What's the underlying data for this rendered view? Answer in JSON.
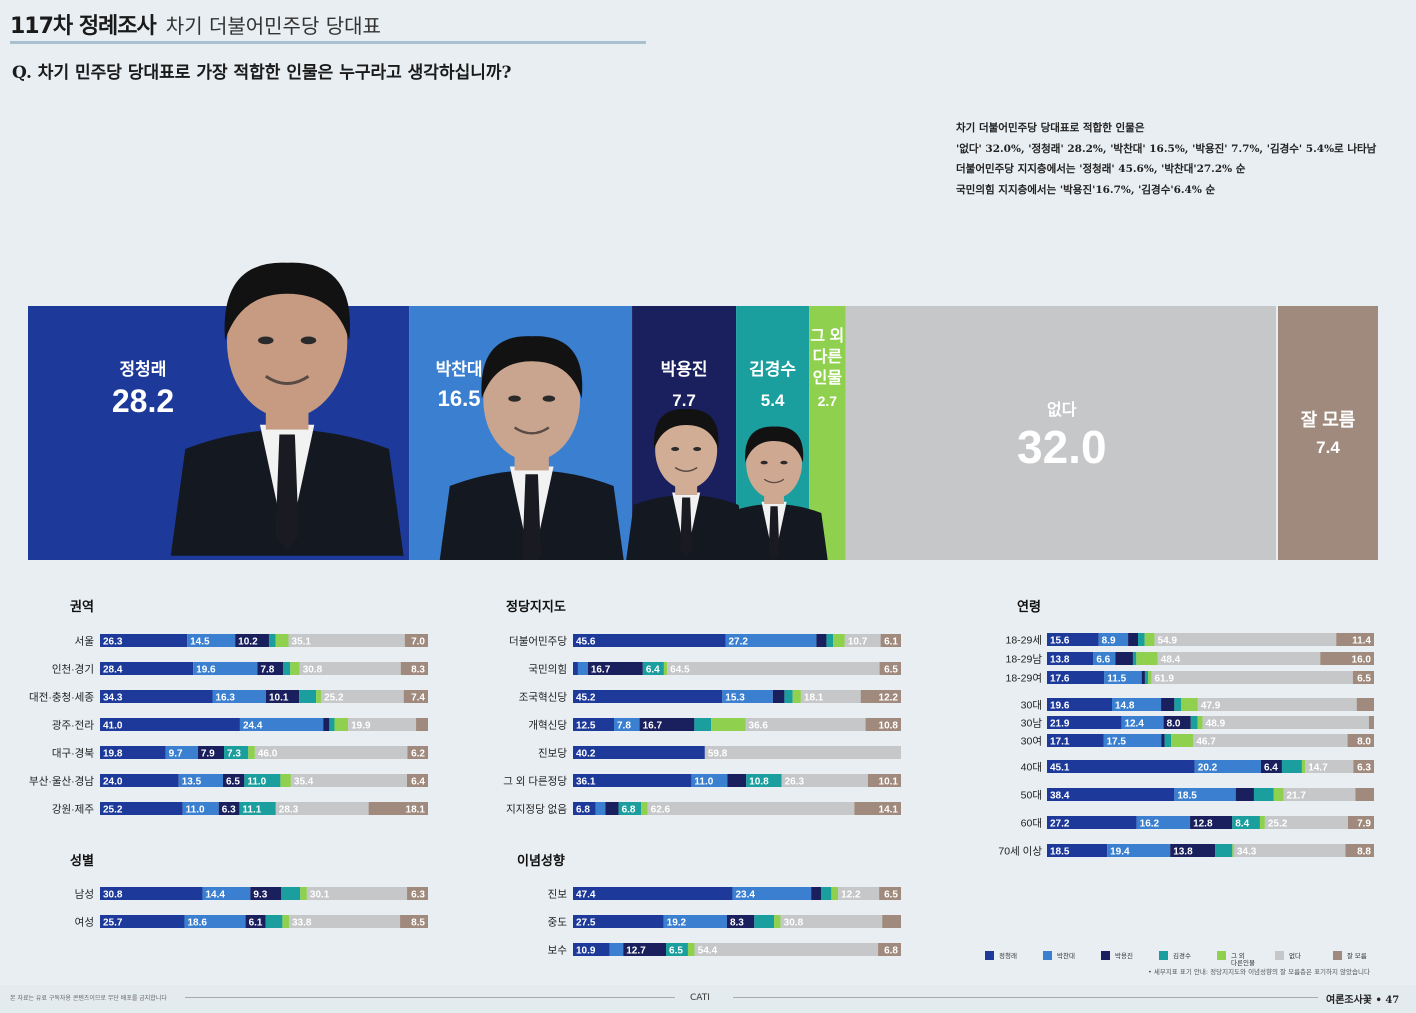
{
  "header": {
    "survey_no": "117차 정례조사",
    "topic": "차기 더불어민주당 당대표"
  },
  "question": "Q. 차기 민주당 당대표로 가장 적합한 인물은 누구라고 생각하십니까?",
  "summary": [
    "차기 더불어민주당 당대표로 적합한 인물은",
    "'없다' 32.0%, '정청래' 28.2%, '박찬대' 16.5%, '박용진' 7.7%, '김경수' 5.4%로 나타남",
    "더불어민주당 지지층에서는 '정청래' 45.6%, '박찬대'27.2% 순",
    "국민의힘 지지층에서는 '박용진'16.7%, '김경수'6.4% 순"
  ],
  "colors": {
    "jung": "#1d3a9a",
    "park_c": "#3a7fd0",
    "park_y": "#1a1f5e",
    "kim": "#1a9e9e",
    "other": "#8fd14f",
    "none": "#c6c7c9",
    "unknown": "#a08a7d",
    "bg": "#e8eef2"
  },
  "legend": [
    "정청래",
    "박찬대",
    "박용진",
    "김경수",
    "그 외\n다른인물",
    "없다",
    "잘 모름"
  ],
  "legend_note": "• 세부지표 표기 안내: 정당지지도와 이념성향의 잘 모름층은 표기하지 않았습니다",
  "chart_data": [
    {
      "type": "bar",
      "title": "",
      "categories": [
        "정청래",
        "박찬대",
        "박용진",
        "김경수",
        "그 외\n다른\n인물",
        "없다",
        "잘 모름"
      ],
      "values": [
        28.2,
        16.5,
        7.7,
        5.4,
        2.7,
        32.0,
        7.4
      ],
      "icons": [
        "person-photo-jung",
        "person-photo-park-chandae",
        "person-photo-park-yongjin",
        "person-photo-kim-kyungsoo"
      ]
    },
    {
      "type": "bar",
      "title": "권역",
      "categories": [
        "서울",
        "인천·경기",
        "대전·충청·세종",
        "광주·전라",
        "대구·경북",
        "부산·울산·경남",
        "강원·제주"
      ],
      "series": [
        {
          "name": "정청래",
          "values": [
            26.3,
            28.4,
            34.3,
            41.0,
            19.8,
            24.0,
            25.2
          ]
        },
        {
          "name": "박찬대",
          "values": [
            14.5,
            19.6,
            16.3,
            24.4,
            9.7,
            13.5,
            11.0
          ]
        },
        {
          "name": "박용진",
          "values": [
            10.2,
            7.8,
            10.1,
            1.8,
            7.9,
            6.5,
            6.3
          ]
        },
        {
          "name": "김경수",
          "values": [
            2.0,
            2.2,
            5.2,
            1.5,
            7.3,
            11.0,
            11.1
          ]
        },
        {
          "name": "그 외 다른인물",
          "values": [
            3.9,
            2.9,
            1.5,
            4.0,
            2.0,
            3.2,
            0.0
          ]
        },
        {
          "name": "없다",
          "values": [
            35.1,
            30.8,
            25.2,
            19.9,
            46.0,
            35.4,
            28.3
          ]
        },
        {
          "name": "잘 모름",
          "values": [
            7.0,
            8.3,
            7.4,
            3.5,
            6.2,
            6.4,
            18.1
          ]
        }
      ]
    },
    {
      "type": "bar",
      "title": "정당지지도",
      "categories": [
        "더불어민주당",
        "국민의힘",
        "조국혁신당",
        "개혁신당",
        "진보당",
        "그 외 다른정당",
        "지지정당 없음"
      ],
      "series": [
        {
          "name": "정청래",
          "values": [
            45.6,
            1.5,
            45.2,
            12.5,
            40.2,
            36.1,
            6.8
          ]
        },
        {
          "name": "박찬대",
          "values": [
            27.2,
            3.0,
            15.3,
            7.8,
            0.0,
            11.0,
            3.0
          ]
        },
        {
          "name": "박용진",
          "values": [
            3.0,
            16.7,
            3.5,
            16.7,
            0.0,
            5.7,
            4.0
          ]
        },
        {
          "name": "김경수",
          "values": [
            2.0,
            6.4,
            2.5,
            5.1,
            0.0,
            10.8,
            6.8
          ]
        },
        {
          "name": "그 외 다른인물",
          "values": [
            3.5,
            1.0,
            2.5,
            10.5,
            0.0,
            0.0,
            2.0
          ]
        },
        {
          "name": "없다",
          "values": [
            10.7,
            64.5,
            18.1,
            36.6,
            59.8,
            26.3,
            62.6
          ]
        },
        {
          "name": "잘 모름",
          "values": [
            6.1,
            6.5,
            12.2,
            10.8,
            0.0,
            10.1,
            14.1
          ]
        }
      ]
    },
    {
      "type": "bar",
      "title": "연령",
      "categories": [
        "18-29세",
        "18-29남",
        "18-29여",
        "30대",
        "30남",
        "30여",
        "40대",
        "50대",
        "60대",
        "70세 이상"
      ],
      "series": [
        {
          "name": "정청래",
          "values": [
            15.6,
            13.8,
            17.6,
            19.6,
            21.9,
            17.1,
            45.1,
            38.4,
            27.2,
            18.5
          ]
        },
        {
          "name": "박찬대",
          "values": [
            8.9,
            6.6,
            11.5,
            14.8,
            12.4,
            17.5,
            20.2,
            18.5,
            16.2,
            19.4
          ]
        },
        {
          "name": "박용진",
          "values": [
            3.0,
            5.2,
            1.0,
            4.0,
            8.0,
            1.0,
            6.4,
            5.5,
            12.8,
            13.8
          ]
        },
        {
          "name": "김경수",
          "values": [
            2.0,
            1.0,
            1.0,
            2.0,
            2.0,
            2.0,
            6.1,
            5.9,
            8.4,
            5.3
          ]
        },
        {
          "name": "그 외 다른인물",
          "values": [
            3.0,
            6.4,
            1.0,
            5.1,
            1.5,
            6.7,
            1.0,
            3.0,
            1.5,
            0.5
          ]
        },
        {
          "name": "없다",
          "values": [
            54.9,
            48.4,
            61.9,
            47.9,
            48.9,
            46.7,
            14.7,
            21.7,
            25.2,
            34.3
          ]
        },
        {
          "name": "잘 모름",
          "values": [
            11.4,
            16.0,
            6.5,
            5.2,
            1.5,
            8.0,
            6.3,
            5.6,
            7.9,
            8.8
          ]
        }
      ]
    },
    {
      "type": "bar",
      "title": "성별",
      "categories": [
        "남성",
        "여성"
      ],
      "series": [
        {
          "name": "정청래",
          "values": [
            30.8,
            25.7
          ]
        },
        {
          "name": "박찬대",
          "values": [
            14.4,
            18.6
          ]
        },
        {
          "name": "박용진",
          "values": [
            9.3,
            6.1
          ]
        },
        {
          "name": "김경수",
          "values": [
            5.7,
            5.1
          ]
        },
        {
          "name": "그 외 다른인물",
          "values": [
            2.0,
            2.0
          ]
        },
        {
          "name": "없다",
          "values": [
            30.1,
            33.8
          ]
        },
        {
          "name": "잘 모름",
          "values": [
            6.3,
            8.5
          ]
        }
      ]
    },
    {
      "type": "bar",
      "title": "이념성향",
      "categories": [
        "진보",
        "중도",
        "보수"
      ],
      "series": [
        {
          "name": "정청래",
          "values": [
            47.4,
            27.5,
            10.9
          ]
        },
        {
          "name": "박찬대",
          "values": [
            23.4,
            19.2,
            4.0
          ]
        },
        {
          "name": "박용진",
          "values": [
            3.0,
            8.3,
            12.7
          ]
        },
        {
          "name": "김경수",
          "values": [
            3.0,
            6.0,
            6.5
          ]
        },
        {
          "name": "그 외 다른인물",
          "values": [
            2.0,
            2.0,
            2.0
          ]
        },
        {
          "name": "없다",
          "values": [
            12.2,
            30.8,
            54.4
          ]
        },
        {
          "name": "잘 모름",
          "values": [
            6.5,
            5.7,
            6.8
          ]
        }
      ]
    }
  ],
  "footer": {
    "left": "본 자료는 유료 구독자용 콘텐츠이므로 무단 배포를 금지합니다",
    "center": "CATI",
    "right": "여론조사꽃 • 47"
  }
}
